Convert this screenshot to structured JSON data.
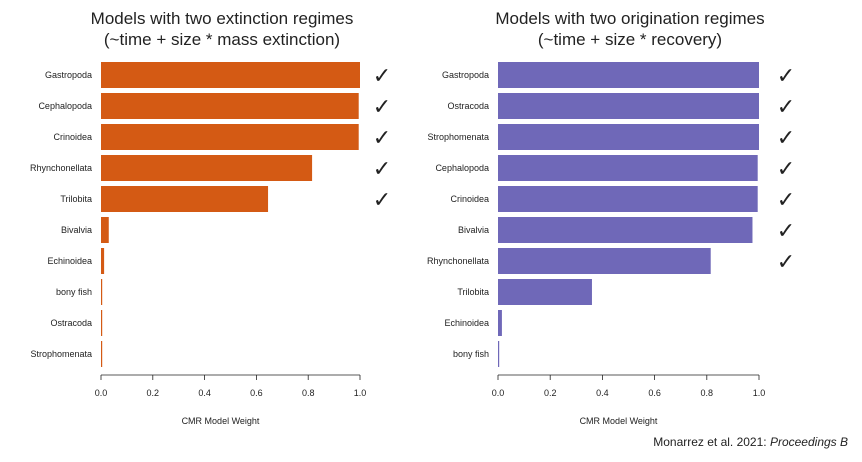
{
  "chart_data": [
    {
      "type": "bar",
      "orientation": "horizontal",
      "title_lines": [
        "Models with two extinction regimes",
        "(~time + size * mass extinction)"
      ],
      "xlabel": "CMR Model Weight",
      "xlim": [
        0,
        1
      ],
      "xticks": [
        "0.0",
        "0.2",
        "0.4",
        "0.6",
        "0.8",
        "1.0"
      ],
      "color": "#d45a14",
      "check_mark": "✓",
      "categories": [
        "Gastropoda",
        "Cephalopoda",
        "Crinoidea",
        "Rhynchonellata",
        "Trilobita",
        "Bivalvia",
        "Echinoidea",
        "bony fish",
        "Ostracoda",
        "Strophomenata"
      ],
      "values": [
        1.0,
        0.995,
        0.995,
        0.815,
        0.645,
        0.03,
        0.012,
        0.002,
        0.002,
        0.002
      ],
      "checked": [
        true,
        true,
        true,
        true,
        true,
        false,
        false,
        false,
        false,
        false
      ]
    },
    {
      "type": "bar",
      "orientation": "horizontal",
      "title_lines": [
        "Models with two origination regimes",
        "(~time + size * recovery)"
      ],
      "xlabel": "CMR Model Weight",
      "xlim": [
        0,
        1
      ],
      "xticks": [
        "0.0",
        "0.2",
        "0.4",
        "0.6",
        "0.8",
        "1.0"
      ],
      "color": "#6f68b8",
      "check_mark": "✓",
      "categories": [
        "Gastropoda",
        "Ostracoda",
        "Strophomenata",
        "Cephalopoda",
        "Crinoidea",
        "Bivalvia",
        "Rhynchonellata",
        "Trilobita",
        "Echinoidea",
        "bony fish"
      ],
      "values": [
        1.0,
        1.0,
        1.0,
        0.995,
        0.995,
        0.975,
        0.815,
        0.36,
        0.015,
        0.003
      ],
      "checked": [
        true,
        true,
        true,
        true,
        true,
        true,
        true,
        false,
        false,
        false
      ]
    }
  ],
  "citation": {
    "text": "Monarrez et al. 2021: ",
    "journal": "Proceedings B"
  }
}
